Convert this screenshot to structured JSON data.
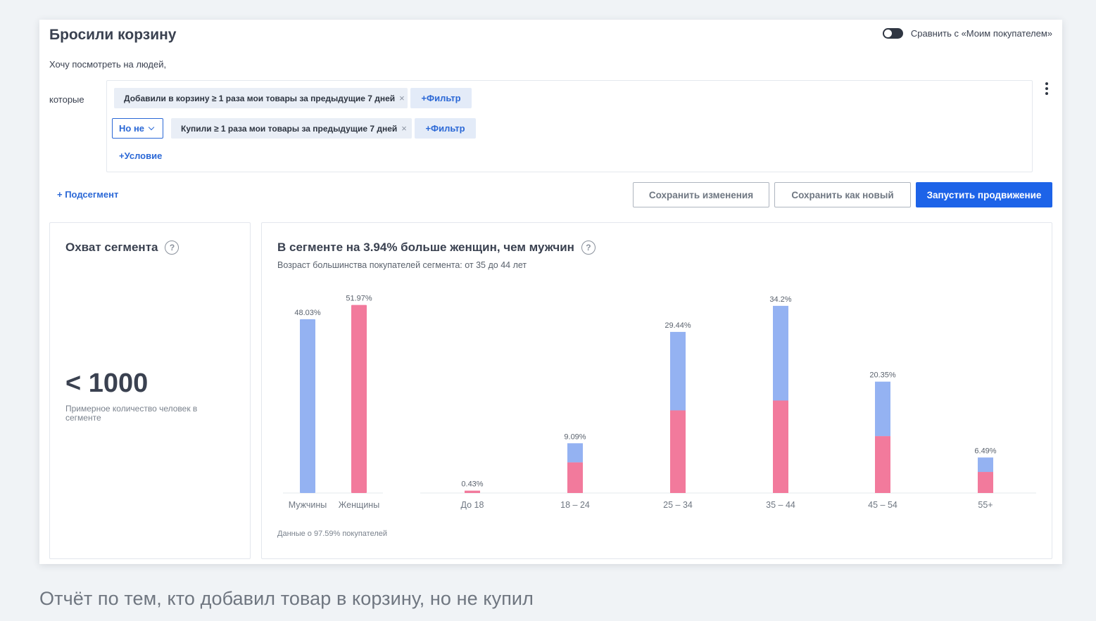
{
  "page": {
    "title": "Бросили корзину",
    "compare_label": "Сравнить с «Моим покупателем»",
    "intro": "Хочу посмотреть на людей,",
    "which_label": "которые",
    "condition1": {
      "chip": "Добавили в корзину ≥ 1 раза мои товары за предыдущие 7 дней",
      "filter": "+Фильтр"
    },
    "condition2": {
      "operator": "Но не",
      "chip": "Купили ≥ 1 раза мои товары за предыдущие 7 дней",
      "filter": "+Фильтр"
    },
    "add_condition": "+Условие",
    "add_subsegment": "+ Подсегмент",
    "buttons": {
      "save_changes": "Сохранить изменения",
      "save_new": "Сохранить как новый",
      "launch": "Запустить продвижение"
    },
    "remove_glyph": "×",
    "help_glyph": "?"
  },
  "reach": {
    "title": "Охват сегмента",
    "value": "< 1000",
    "description": "Примерное количество человек в сегменте"
  },
  "demographics": {
    "title": "В сегменте на 3.94% больше женщин, чем мужчин",
    "subtitle": "Возраст большинства покупателей сегмента: от 35 до 44 лет",
    "footnote": "Данные о 97.59% покупателей"
  },
  "caption": "Отчёт по тем, кто добавил товар в корзину, но не купил",
  "colors": {
    "men": "#94b2f2",
    "women": "#f27a9c",
    "accent": "#1d63e8"
  },
  "chart_data": [
    {
      "type": "bar",
      "categories": [
        "Мужчины",
        "Женщины"
      ],
      "values": [
        48.03,
        51.97
      ],
      "labels": [
        "48.03%",
        "51.97%"
      ],
      "colors": [
        "#94b2f2",
        "#f27a9c"
      ],
      "ylim": [
        0,
        55
      ]
    },
    {
      "type": "bar",
      "stacked": true,
      "categories": [
        "До 18",
        "18 – 24",
        "25 – 34",
        "35 – 44",
        "45 – 54",
        "55+"
      ],
      "totals": [
        0.43,
        9.09,
        29.44,
        34.2,
        20.35,
        6.49
      ],
      "labels": [
        "0.43%",
        "9.09%",
        "29.44%",
        "34.2%",
        "20.35%",
        "6.49%"
      ],
      "series": [
        {
          "values": [
            0.43,
            5.6,
            15.1,
            16.9,
            10.4,
            3.85
          ],
          "color": "#f27a9c"
        },
        {
          "values": [
            0.0,
            3.49,
            14.34,
            17.3,
            9.95,
            2.64
          ],
          "color": "#94b2f2"
        }
      ],
      "ylim": [
        0,
        36.5
      ]
    }
  ]
}
